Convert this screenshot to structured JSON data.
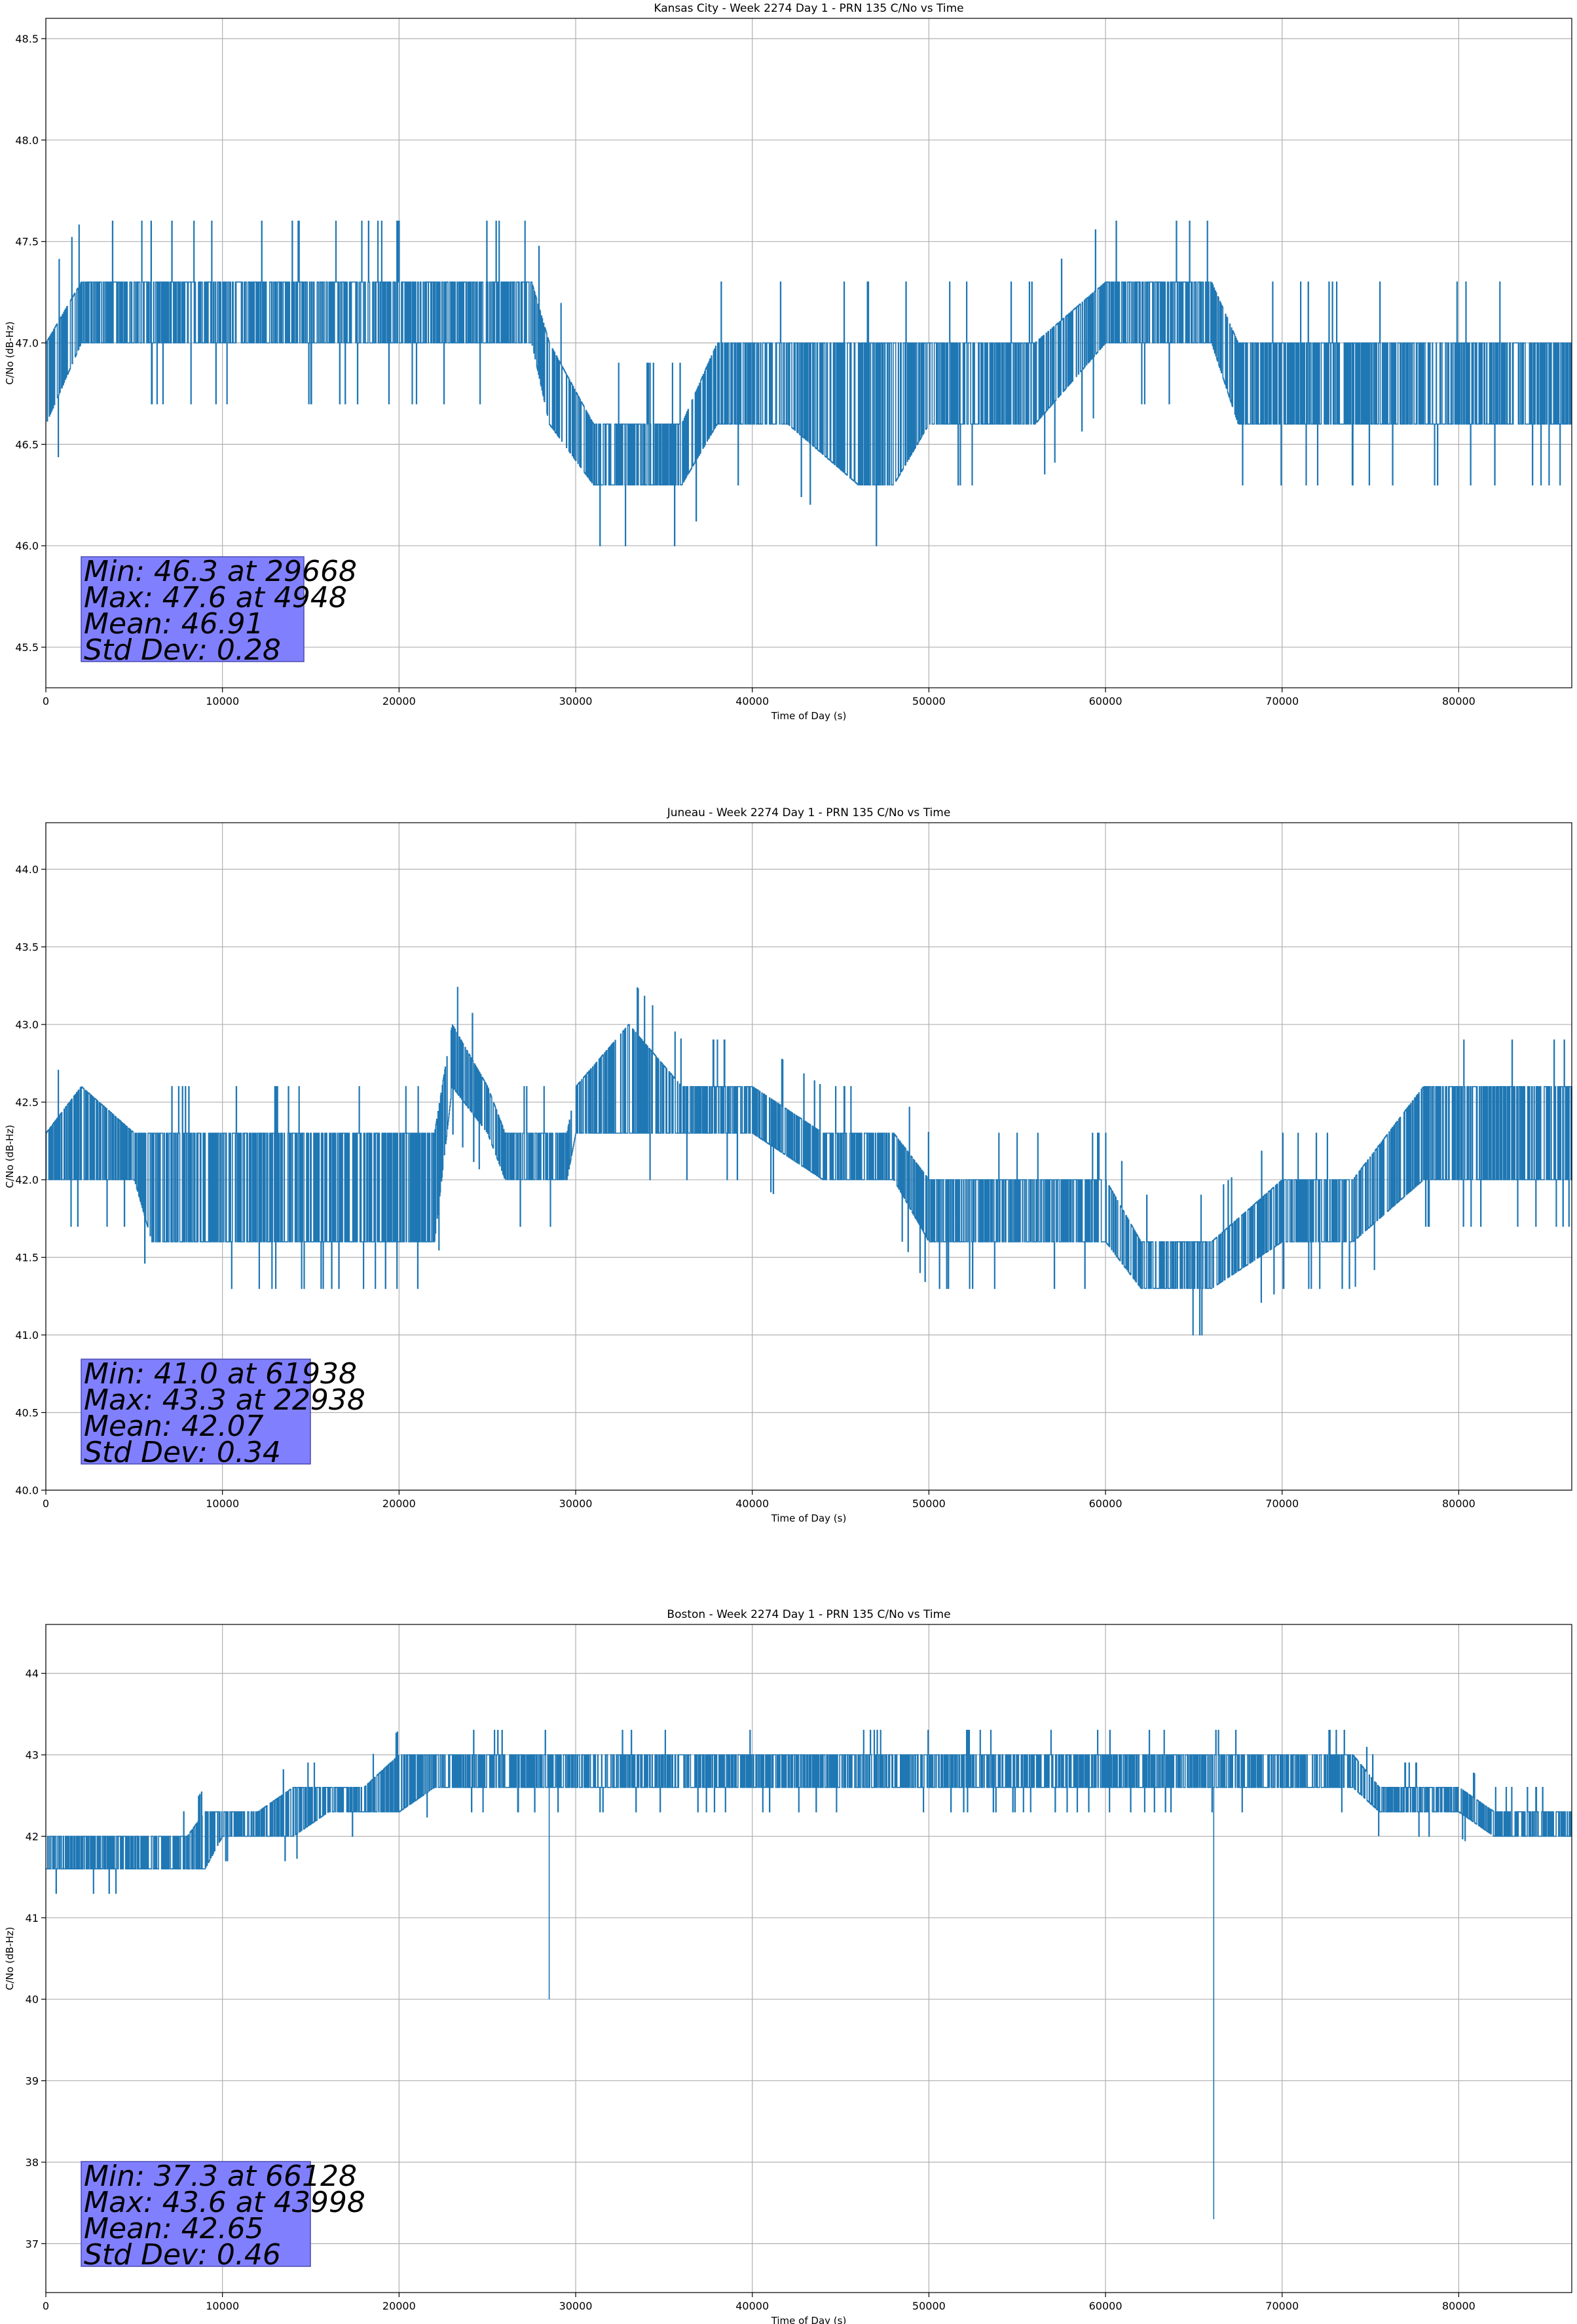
{
  "colors": {
    "line": "#1f77b4",
    "grid": "#b0b0b0",
    "stats_box": "#8080ff",
    "stats_box_edge": "#4a4ab0"
  },
  "chart_data": [
    {
      "type": "line",
      "title": "Kansas City - Week 2274 Day 1 - PRN 135 C/No vs Time",
      "xlabel": "Time of Day (s)",
      "ylabel": "C/No (dB-Hz)",
      "xlim": [
        0,
        86400
      ],
      "ylim": [
        45.3,
        48.6
      ],
      "grid": true,
      "x_ticks": [
        0,
        10000,
        20000,
        30000,
        40000,
        50000,
        60000,
        70000,
        80000
      ],
      "x_tick_labels": [
        "0",
        "10000",
        "20000",
        "30000",
        "40000",
        "50000",
        "60000",
        "70000",
        "80000"
      ],
      "y_ticks": [
        45.5,
        46.0,
        46.5,
        47.0,
        47.5,
        48.0,
        48.5
      ],
      "y_tick_labels": [
        "45.5",
        "46.0",
        "46.5",
        "47.0",
        "47.5",
        "48.0",
        "48.5"
      ],
      "stats": [
        "Min: 46.3 at 29668",
        "Max: 47.6 at 4948",
        "Mean: 46.91",
        "Std Dev: 0.28"
      ],
      "series": [
        {
          "x": [
            0,
            2000,
            4000,
            8000,
            12000,
            16000,
            20000,
            24000,
            27500,
            28500,
            31000,
            33000,
            36000,
            38000,
            42000,
            46000,
            48000,
            50000,
            52000,
            56000,
            60000,
            62000,
            66000,
            67500,
            70000,
            76000,
            82000,
            86400
          ],
          "low": [
            46.6,
            47.0,
            47.0,
            47.0,
            47.0,
            47.0,
            47.0,
            47.0,
            47.0,
            46.6,
            46.3,
            46.3,
            46.3,
            46.6,
            46.6,
            46.3,
            46.3,
            46.6,
            46.6,
            46.6,
            47.0,
            47.0,
            47.0,
            46.6,
            46.6,
            46.6,
            46.6,
            46.6
          ],
          "high": [
            47.0,
            47.3,
            47.3,
            47.3,
            47.3,
            47.3,
            47.3,
            47.3,
            47.3,
            47.0,
            46.6,
            46.6,
            46.6,
            47.0,
            47.0,
            47.0,
            47.0,
            47.0,
            47.0,
            47.0,
            47.3,
            47.3,
            47.3,
            47.0,
            47.0,
            47.0,
            47.0,
            47.0
          ]
        }
      ]
    },
    {
      "type": "line",
      "title": "Juneau - Week 2274 Day 1 - PRN 135 C/No vs Time",
      "xlabel": "Time of Day (s)",
      "ylabel": "C/No (dB-Hz)",
      "xlim": [
        0,
        86400
      ],
      "ylim": [
        40.0,
        44.3
      ],
      "grid": true,
      "x_ticks": [
        0,
        10000,
        20000,
        30000,
        40000,
        50000,
        60000,
        70000,
        80000
      ],
      "x_tick_labels": [
        "0",
        "10000",
        "20000",
        "30000",
        "40000",
        "50000",
        "60000",
        "70000",
        "80000"
      ],
      "y_ticks": [
        40.0,
        40.5,
        41.0,
        41.5,
        42.0,
        42.5,
        43.0,
        43.5,
        44.0
      ],
      "y_tick_labels": [
        "40.0",
        "40.5",
        "41.0",
        "41.5",
        "42.0",
        "42.5",
        "43.0",
        "43.5",
        "44.0"
      ],
      "stats": [
        "Min: 41.0 at 61938",
        "Max: 43.3 at 22938",
        "Mean: 42.07",
        "Std Dev: 0.34"
      ],
      "series": [
        {
          "x": [
            0,
            2000,
            5000,
            6000,
            10000,
            14000,
            18000,
            22000,
            23000,
            25000,
            26000,
            29500,
            30000,
            33000,
            36000,
            40000,
            44000,
            48000,
            50000,
            55000,
            60000,
            62000,
            66000,
            70000,
            74000,
            78000,
            82000,
            86400
          ],
          "low": [
            42.0,
            42.0,
            42.0,
            41.6,
            41.6,
            41.6,
            41.6,
            41.6,
            42.6,
            42.3,
            42.0,
            42.0,
            42.3,
            42.3,
            42.3,
            42.3,
            42.0,
            42.0,
            41.6,
            41.6,
            41.6,
            41.3,
            41.3,
            41.6,
            41.6,
            42.0,
            42.0,
            42.0
          ],
          "high": [
            42.3,
            42.6,
            42.3,
            42.3,
            42.3,
            42.3,
            42.3,
            42.3,
            43.0,
            42.6,
            42.3,
            42.3,
            42.6,
            43.0,
            42.6,
            42.6,
            42.3,
            42.3,
            42.0,
            42.0,
            42.0,
            41.6,
            41.6,
            42.0,
            42.0,
            42.6,
            42.6,
            42.6
          ]
        }
      ]
    },
    {
      "type": "line",
      "title": "Boston - Week 2274 Day 1 - PRN 135 C/No vs Time",
      "xlabel": "Time of Day (s)",
      "ylabel": "C/No (dB-Hz)",
      "xlim": [
        0,
        86400
      ],
      "ylim": [
        36.4,
        44.6
      ],
      "grid": true,
      "x_ticks": [
        0,
        10000,
        20000,
        30000,
        40000,
        50000,
        60000,
        70000,
        80000
      ],
      "x_tick_labels": [
        "0",
        "10000",
        "20000",
        "30000",
        "40000",
        "50000",
        "60000",
        "70000",
        "80000"
      ],
      "y_ticks": [
        37,
        38,
        39,
        40,
        41,
        42,
        43,
        44
      ],
      "y_tick_labels": [
        "37",
        "38",
        "39",
        "40",
        "41",
        "42",
        "43",
        "44"
      ],
      "stats": [
        "Min: 37.3 at 66128",
        "Max: 43.6 at 43998",
        "Mean: 42.65",
        "Std Dev: 0.46"
      ],
      "series": [
        {
          "x": [
            0,
            2000,
            5000,
            8000,
            9000,
            10000,
            12000,
            14000,
            16000,
            18000,
            20000,
            22000,
            26000,
            30000,
            35000,
            40000,
            45000,
            50000,
            55000,
            60000,
            65000,
            70000,
            74000,
            75500,
            80000,
            82000,
            84000,
            86400
          ],
          "low": [
            41.6,
            41.6,
            41.6,
            41.6,
            41.6,
            42.0,
            42.0,
            42.0,
            42.3,
            42.3,
            42.3,
            42.6,
            42.6,
            42.6,
            42.6,
            42.6,
            42.6,
            42.6,
            42.6,
            42.6,
            42.6,
            42.6,
            42.6,
            42.3,
            42.3,
            42.0,
            42.0,
            42.0
          ],
          "high": [
            42.0,
            42.0,
            42.0,
            42.0,
            42.3,
            42.3,
            42.3,
            42.6,
            42.6,
            42.6,
            43.0,
            43.0,
            43.0,
            43.0,
            43.0,
            43.0,
            43.0,
            43.0,
            43.0,
            43.0,
            43.0,
            43.0,
            43.0,
            42.6,
            42.6,
            42.3,
            42.3,
            42.3
          ]
        }
      ]
    }
  ]
}
